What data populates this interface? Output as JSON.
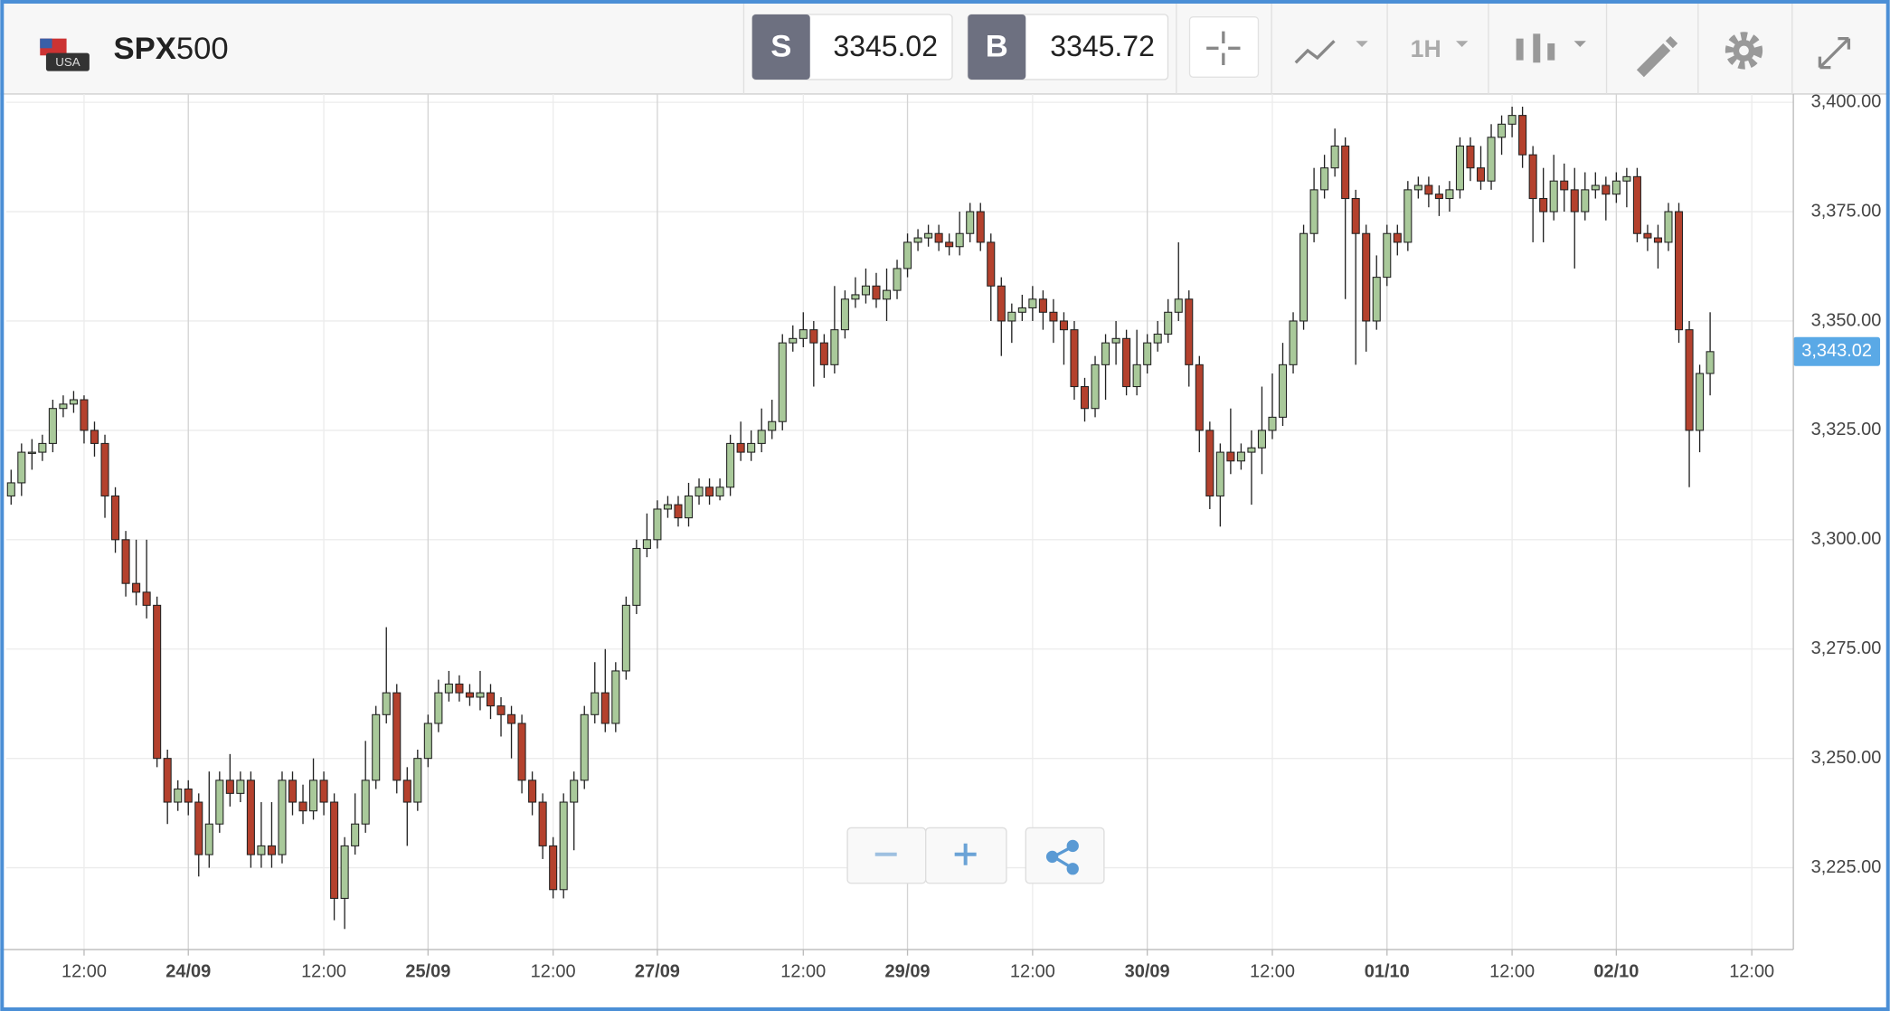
{
  "toolbar": {
    "symbol_prefix": "SPX",
    "symbol_suffix": "500",
    "flag_label": "USA",
    "sell": {
      "label": "S",
      "price": 3345.02
    },
    "buy": {
      "label": "B",
      "price": 3345.72
    },
    "interval": "1H"
  },
  "chart_data": {
    "type": "candlestick",
    "categories": [
      null,
      null,
      null,
      null,
      null,
      null,
      null,
      "12:00",
      null,
      null,
      null,
      null,
      null,
      null,
      null,
      null,
      null,
      "24/09",
      null,
      null,
      null,
      null,
      null,
      null,
      null,
      null,
      null,
      null,
      null,
      null,
      "12:00",
      null,
      null,
      null,
      null,
      null,
      null,
      null,
      null,
      null,
      "25/09",
      null,
      null,
      null,
      null,
      null,
      null,
      null,
      null,
      null,
      null,
      null,
      "12:00",
      null,
      null,
      null,
      null,
      null,
      null,
      null,
      null,
      null,
      "27/09",
      null,
      null,
      null,
      null,
      null,
      null,
      null,
      null,
      null,
      null,
      null,
      null,
      null,
      "12:00",
      null,
      null,
      null,
      null,
      null,
      null,
      null,
      null,
      null,
      "29/09",
      null,
      null,
      null,
      null,
      null,
      null,
      null,
      null,
      null,
      null,
      null,
      "12:00",
      null,
      null,
      null,
      null,
      null,
      null,
      null,
      null,
      null,
      null,
      "30/09",
      null,
      null,
      null,
      null,
      null,
      null,
      null,
      null,
      null,
      null,
      null,
      "12:00",
      null,
      null,
      null,
      null,
      null,
      null,
      null,
      null,
      null,
      null,
      "01/10",
      null,
      null,
      null,
      null,
      null,
      null,
      null,
      null,
      null,
      null,
      null,
      "12:00",
      null,
      null,
      null,
      null,
      null,
      null,
      null,
      null,
      null,
      "02/10",
      null,
      null,
      null,
      null,
      null,
      null,
      null,
      null,
      null,
      null,
      null,
      null,
      "12:00"
    ],
    "open": [
      3310,
      3313,
      3320,
      3320,
      3322,
      3330,
      3331,
      3332,
      3325,
      3322,
      3310,
      3300,
      3290,
      3288,
      3285,
      3250,
      3240,
      3243,
      3240,
      3228,
      3235,
      3245,
      3242,
      3245,
      3228,
      3230,
      3228,
      3245,
      3240,
      3238,
      3245,
      3240,
      3218,
      3230,
      3235,
      3245,
      3260,
      3265,
      3245,
      3240,
      3250,
      3258,
      3265,
      3267,
      3265,
      3264,
      3265,
      3262,
      3260,
      3258,
      3245,
      3240,
      3230,
      3220,
      3240,
      3245,
      3260,
      3265,
      3258,
      3270,
      3285,
      3298,
      3300,
      3307,
      3308,
      3305,
      3310,
      3312,
      3310,
      3312,
      3322,
      3320,
      3322,
      3325,
      3327,
      3345,
      3346,
      3348,
      3345,
      3340,
      3348,
      3355,
      3356,
      3358,
      3355,
      3357,
      3362,
      3368,
      3369,
      3370,
      3368,
      3367,
      3370,
      3375,
      3368,
      3358,
      3350,
      3352,
      3353,
      3355,
      3352,
      3350,
      3348,
      3335,
      3330,
      3340,
      3345,
      3346,
      3335,
      3340,
      3345,
      3347,
      3352,
      3355,
      3340,
      3325,
      3310,
      3320,
      3318,
      3320,
      3321,
      3325,
      3328,
      3340,
      3350,
      3370,
      3380,
      3385,
      3390,
      3378,
      3370,
      3350,
      3360,
      3370,
      3368,
      3380,
      3381,
      3379,
      3378,
      3380,
      3390,
      3385,
      3382,
      3392,
      3395,
      3397,
      3388,
      3378,
      3375,
      3382,
      3380,
      3375,
      3380,
      3381,
      3379,
      3382,
      3383,
      3370,
      3369,
      3368,
      3375,
      3348,
      3325,
      3338,
      null,
      null,
      null,
      null
    ],
    "high": [
      3316,
      3322,
      3323,
      3324,
      3332,
      3333,
      3334,
      3333,
      3327,
      3324,
      3312,
      3302,
      3300,
      3300,
      3287,
      3252,
      3245,
      3245,
      3242,
      3247,
      3247,
      3251,
      3247,
      3247,
      3240,
      3240,
      3247,
      3247,
      3244,
      3250,
      3247,
      3242,
      3232,
      3242,
      3254,
      3262,
      3280,
      3267,
      3248,
      3252,
      3260,
      3268,
      3270,
      3269,
      3267,
      3270,
      3267,
      3264,
      3262,
      3260,
      3247,
      3242,
      3232,
      3242,
      3247,
      3262,
      3272,
      3275,
      3272,
      3287,
      3300,
      3306,
      3309,
      3310,
      3310,
      3313,
      3314,
      3314,
      3314,
      3324,
      3327,
      3325,
      3330,
      3332,
      3347,
      3349,
      3352,
      3350,
      3347,
      3358,
      3357,
      3360,
      3362,
      3361,
      3362,
      3364,
      3370,
      3371,
      3372,
      3372,
      3370,
      3375,
      3377,
      3377,
      3370,
      3360,
      3354,
      3356,
      3358,
      3357,
      3355,
      3352,
      3350,
      3337,
      3342,
      3347,
      3350,
      3348,
      3348,
      3347,
      3350,
      3355,
      3368,
      3357,
      3342,
      3327,
      3322,
      3330,
      3322,
      3325,
      3335,
      3338,
      3345,
      3352,
      3372,
      3385,
      3388,
      3394,
      3392,
      3380,
      3372,
      3365,
      3372,
      3372,
      3382,
      3383,
      3383,
      3381,
      3382,
      3392,
      3392,
      3390,
      3395,
      3397,
      3399,
      3399,
      3390,
      3385,
      3388,
      3386,
      3385,
      3384,
      3384,
      3383,
      3384,
      3385,
      3385,
      3372,
      3372,
      3377,
      3377,
      3350,
      3340,
      3352,
      null,
      null,
      null,
      null
    ],
    "low": [
      3308,
      3310,
      3316,
      3318,
      3320,
      3328,
      3329,
      3322,
      3319,
      3305,
      3297,
      3287,
      3285,
      3282,
      3248,
      3235,
      3238,
      3237,
      3223,
      3225,
      3233,
      3239,
      3240,
      3225,
      3225,
      3225,
      3226,
      3237,
      3235,
      3236,
      3237,
      3213,
      3211,
      3228,
      3233,
      3243,
      3258,
      3242,
      3230,
      3238,
      3248,
      3256,
      3263,
      3263,
      3262,
      3261,
      3259,
      3255,
      3250,
      3242,
      3237,
      3227,
      3218,
      3218,
      3229,
      3243,
      3258,
      3256,
      3256,
      3268,
      3283,
      3296,
      3298,
      3305,
      3303,
      3303,
      3308,
      3308,
      3309,
      3310,
      3318,
      3318,
      3320,
      3323,
      3325,
      3343,
      3344,
      3335,
      3337,
      3338,
      3346,
      3353,
      3354,
      3353,
      3350,
      3355,
      3360,
      3366,
      3367,
      3366,
      3365,
      3365,
      3368,
      3366,
      3350,
      3342,
      3345,
      3350,
      3350,
      3348,
      3345,
      3340,
      3332,
      3327,
      3328,
      3332,
      3340,
      3333,
      3333,
      3338,
      3343,
      3345,
      3350,
      3335,
      3320,
      3307,
      3303,
      3315,
      3316,
      3308,
      3315,
      3323,
      3326,
      3338,
      3348,
      3368,
      3378,
      3383,
      3355,
      3340,
      3343,
      3348,
      3358,
      3365,
      3366,
      3378,
      3376,
      3374,
      3375,
      3378,
      3382,
      3380,
      3380,
      3388,
      3392,
      3385,
      3368,
      3368,
      3373,
      3375,
      3362,
      3373,
      3378,
      3373,
      3377,
      3376,
      3368,
      3366,
      3362,
      3366,
      3345,
      3312,
      3320,
      3333,
      null,
      null,
      null,
      null
    ],
    "close": [
      3313,
      3320,
      3320,
      3322,
      3330,
      3331,
      3332,
      3325,
      3322,
      3310,
      3300,
      3290,
      3288,
      3285,
      3250,
      3240,
      3243,
      3240,
      3228,
      3235,
      3245,
      3242,
      3245,
      3228,
      3230,
      3228,
      3245,
      3240,
      3238,
      3245,
      3240,
      3218,
      3230,
      3235,
      3245,
      3260,
      3265,
      3245,
      3240,
      3250,
      3258,
      3265,
      3267,
      3265,
      3264,
      3265,
      3262,
      3260,
      3258,
      3245,
      3240,
      3230,
      3220,
      3240,
      3245,
      3260,
      3265,
      3258,
      3270,
      3285,
      3298,
      3300,
      3307,
      3308,
      3305,
      3310,
      3312,
      3310,
      3312,
      3322,
      3320,
      3322,
      3325,
      3327,
      3345,
      3346,
      3348,
      3345,
      3340,
      3348,
      3355,
      3356,
      3358,
      3355,
      3357,
      3362,
      3368,
      3369,
      3370,
      3368,
      3367,
      3370,
      3375,
      3368,
      3358,
      3350,
      3352,
      3353,
      3355,
      3352,
      3350,
      3348,
      3335,
      3330,
      3340,
      3345,
      3346,
      3335,
      3340,
      3345,
      3347,
      3352,
      3355,
      3340,
      3325,
      3310,
      3320,
      3318,
      3320,
      3321,
      3325,
      3328,
      3340,
      3350,
      3370,
      3380,
      3385,
      3390,
      3378,
      3370,
      3350,
      3360,
      3370,
      3368,
      3380,
      3381,
      3379,
      3378,
      3380,
      3390,
      3385,
      3382,
      3392,
      3395,
      3397,
      3388,
      3378,
      3375,
      3382,
      3380,
      3375,
      3380,
      3381,
      3379,
      3382,
      3383,
      3370,
      3369,
      3368,
      3375,
      3348,
      3325,
      3338,
      3343,
      null,
      null,
      null,
      null
    ],
    "up_color": "#a9c99a",
    "down_color": "#b4412d",
    "ylim": [
      3206.3,
      3401.9
    ],
    "yticks": [
      {
        "value": 3225,
        "label": "3,225.00"
      },
      {
        "value": 3250,
        "label": "3,250.00"
      },
      {
        "value": 3275,
        "label": "3,275.00"
      },
      {
        "value": 3300,
        "label": "3,300.00"
      },
      {
        "value": 3325,
        "label": "3,325.00"
      },
      {
        "value": 3350,
        "label": "3,350.00"
      },
      {
        "value": 3375,
        "label": "3,375.00"
      },
      {
        "value": 3400,
        "label": "3,400.00"
      }
    ],
    "grid": true,
    "current_price": {
      "value": 3343.02,
      "label": "3,343.02"
    }
  }
}
